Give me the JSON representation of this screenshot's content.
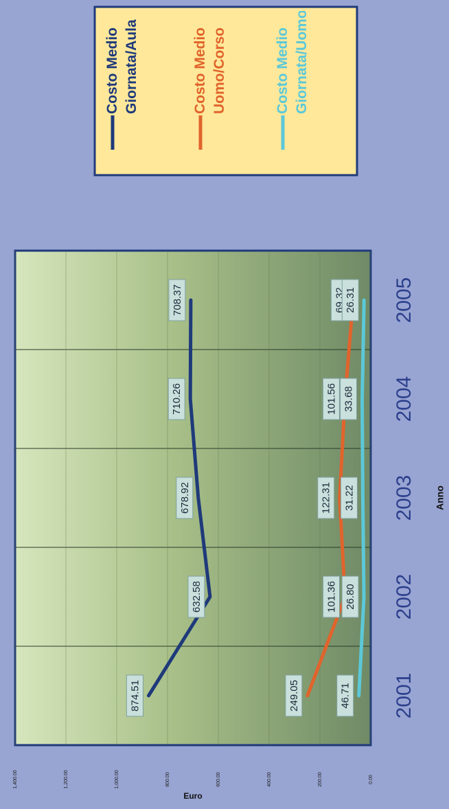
{
  "chart_data": {
    "type": "line",
    "x_label": "Anno",
    "y_label": "Euro",
    "categories": [
      "2001",
      "2002",
      "2003",
      "2004",
      "2005"
    ],
    "series": [
      {
        "name": "Costo Medio Giornata/Aula",
        "color": "#1f3a7a",
        "values": [
          874.51,
          632.58,
          678.92,
          710.26,
          708.37
        ],
        "value_labels": [
          "874.51",
          "632.58",
          "678.92",
          "710.26",
          "708.37"
        ]
      },
      {
        "name": "Costo Medio Uomo/Corso",
        "color": "#e0642c",
        "values": [
          249.05,
          101.36,
          122.31,
          101.56,
          69.32
        ],
        "value_labels": [
          "249.05",
          "101.36",
          "122.31",
          "101.56",
          "69.32"
        ]
      },
      {
        "name": "Costo Medio Giornata/Uomo",
        "color": "#5cc8d8",
        "values": [
          46.71,
          26.8,
          31.22,
          33.68,
          26.31
        ],
        "value_labels": [
          "46.71",
          "26.80",
          "31.22",
          "33.68",
          "26.31"
        ]
      }
    ],
    "ylim": [
      0,
      1400
    ],
    "yticks": [
      {
        "value": 0,
        "label": "0.00"
      },
      {
        "value": 200,
        "label": "200.00"
      },
      {
        "value": 400,
        "label": "400.00"
      },
      {
        "value": 600,
        "label": "600.00"
      },
      {
        "value": 800,
        "label": "800.00"
      },
      {
        "value": 1000,
        "label": "1,000.00"
      },
      {
        "value": 1200,
        "label": "1,200.00"
      },
      {
        "value": 1400,
        "label": "1,400.00"
      }
    ],
    "grid": true,
    "legend": "right"
  }
}
